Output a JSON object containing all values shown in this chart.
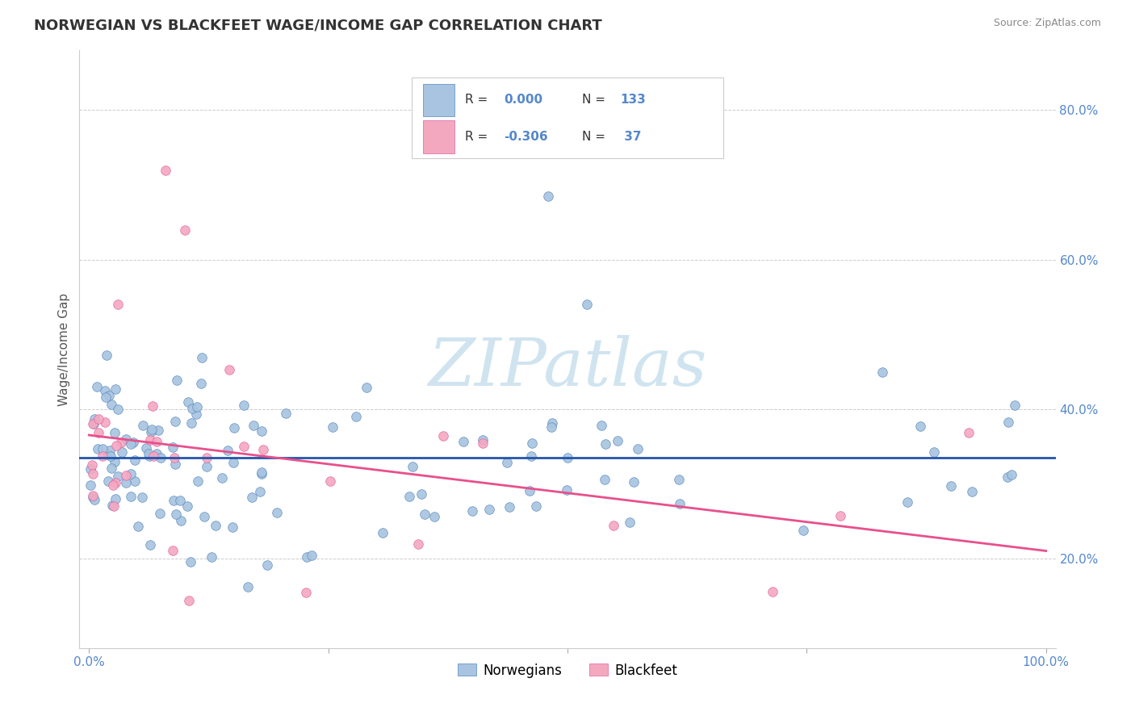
{
  "title": "NORWEGIAN VS BLACKFEET WAGE/INCOME GAP CORRELATION CHART",
  "source_text": "Source: ZipAtlas.com",
  "ylabel": "Wage/Income Gap",
  "xlim": [
    -0.01,
    1.01
  ],
  "ylim": [
    0.08,
    0.88
  ],
  "xticks": [
    0.0,
    0.25,
    0.5,
    0.75,
    1.0
  ],
  "xtick_labels": [
    "0.0%",
    "",
    "",
    "",
    "100.0%"
  ],
  "ytick_labels": [
    "20.0%",
    "40.0%",
    "60.0%",
    "80.0%"
  ],
  "yticks": [
    0.2,
    0.4,
    0.6,
    0.8
  ],
  "norwegian_fill": "#a8c4e0",
  "norwegian_edge": "#5588bb",
  "blackfeet_fill": "#f4a8c0",
  "blackfeet_edge": "#e060a0",
  "nor_line_color": "#2255aa",
  "blk_line_color": "#e8508c",
  "tick_color": "#5588cc",
  "grid_color": "#cccccc",
  "background_color": "#ffffff",
  "title_color": "#333333",
  "source_color": "#888888",
  "ylabel_color": "#555555",
  "legend_r_color": "#333333",
  "legend_nv_color": "#5588cc",
  "watermark_color": "#d0e4f0",
  "watermark_text": "ZIPatlas",
  "legend_r_norwegian": "0.000",
  "legend_n_norwegian": "133",
  "legend_r_blackfeet": "-0.306",
  "legend_n_blackfeet": "37",
  "legend_label_norwegian": "Norwegians",
  "legend_label_blackfeet": "Blackfeet",
  "nor_trend_y": 0.335,
  "blk_trend_x0": 0.0,
  "blk_trend_y0": 0.365,
  "blk_trend_x1": 1.0,
  "blk_trend_y1": 0.21
}
